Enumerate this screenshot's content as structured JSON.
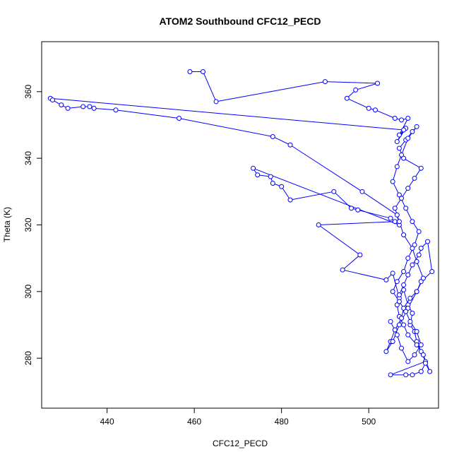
{
  "chart_data": {
    "type": "scatter",
    "title": "ATOM2 Southbound CFC12_PECD",
    "xlabel": "CFC12_PECD",
    "ylabel": "Theta (K)",
    "xlim": [
      425,
      516
    ],
    "ylim": [
      265,
      375
    ],
    "xticks": [
      440,
      460,
      480,
      500
    ],
    "yticks": [
      280,
      300,
      320,
      340,
      360
    ],
    "xtick_labels": [
      "440",
      "460",
      "480",
      "500"
    ],
    "ytick_labels": [
      "280",
      "300",
      "320",
      "340",
      "360"
    ],
    "grid": false,
    "legend": "none",
    "color": "#0000ff",
    "series": [
      {
        "x": [
          459.0,
          462.0,
          465.0,
          490.0,
          502.0,
          497.0,
          495.0,
          500.0,
          501.5,
          506.0,
          507.5,
          509.0,
          507.0,
          508.5,
          506.5,
          508.0,
          427.0,
          427.5,
          429.5,
          431.0,
          434.5,
          436.0,
          437.0,
          442.0,
          456.5,
          478.0,
          482.0,
          498.5,
          506.5,
          507.0,
          473.5,
          474.5,
          477.5,
          478.0,
          480.0,
          482.0,
          492.0,
          496.0,
          497.5,
          505.0,
          506.0,
          488.5,
          498.0,
          494.0,
          504.0,
          505.5,
          507.0,
          508.0,
          509.0,
          510.0,
          509.5,
          510.5,
          511.0,
          512.0,
          513.0,
          505.0,
          508.5,
          510.0,
          512.0,
          513.0,
          514.0,
          512.5,
          511.0,
          509.0,
          508.0,
          507.0,
          506.5,
          507.0,
          508.0,
          509.0,
          510.0,
          511.5,
          512.0,
          513.5,
          514.5,
          512.0,
          511.0,
          509.5,
          508.0,
          507.5,
          506.0,
          505.0,
          504.0,
          505.5,
          507.0,
          509.0,
          511.0,
          512.5,
          511.0,
          510.0,
          508.0,
          507.0,
          506.0,
          507.5,
          509.0,
          510.5,
          512.0,
          508.0,
          507.0,
          508.5,
          510.0,
          511.0,
          509.0,
          507.5,
          506.5,
          505.5,
          507.0,
          508.5,
          510.0,
          511.5,
          510.5,
          509.0,
          508.0,
          506.5,
          505.5,
          507.0,
          508.5,
          509.5,
          511.0,
          512.0,
          510.5,
          509.0,
          507.5,
          506.5,
          505.0
        ],
        "y": [
          366.0,
          366.0,
          357.0,
          363.0,
          362.5,
          360.5,
          358.0,
          355.0,
          354.5,
          352.0,
          351.5,
          352.0,
          347.0,
          349.0,
          345.0,
          348.5,
          358.0,
          357.5,
          356.0,
          355.0,
          355.5,
          355.5,
          355.0,
          354.5,
          352.0,
          346.5,
          344.0,
          330.0,
          323.0,
          320.0,
          337.0,
          335.0,
          334.5,
          332.5,
          331.5,
          327.5,
          330.0,
          325.0,
          324.5,
          322.0,
          321.0,
          320.0,
          311.0,
          306.5,
          303.5,
          305.5,
          298.0,
          300.5,
          296.0,
          293.5,
          290.0,
          288.0,
          285.0,
          282.0,
          279.0,
          275.0,
          275.0,
          275.0,
          276.0,
          278.5,
          276.0,
          281.0,
          284.0,
          287.0,
          290.0,
          292.5,
          296.0,
          299.0,
          302.0,
          305.0,
          308.0,
          311.0,
          313.0,
          315.0,
          306.0,
          303.0,
          300.0,
          298.0,
          295.0,
          292.0,
          288.5,
          285.0,
          282.0,
          285.0,
          290.0,
          295.0,
          300.0,
          304.0,
          309.0,
          313.0,
          317.0,
          321.0,
          325.0,
          328.0,
          331.0,
          334.0,
          337.0,
          340.0,
          343.0,
          345.5,
          348.0,
          349.5,
          346.0,
          341.0,
          337.5,
          333.0,
          329.0,
          325.0,
          321.0,
          318.0,
          314.0,
          310.0,
          306.0,
          303.0,
          300.0,
          297.0,
          294.0,
          291.0,
          288.0,
          284.0,
          281.0,
          279.0,
          283.0,
          287.0,
          291.0
        ]
      }
    ]
  }
}
